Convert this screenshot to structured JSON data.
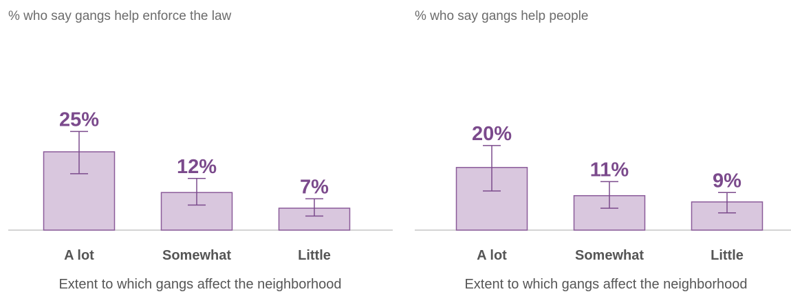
{
  "colors": {
    "bar_fill": "#d9c7de",
    "bar_stroke": "#8a5a99",
    "label": "#7b4a8c",
    "text": "#555555",
    "title": "#6b6b6b"
  },
  "chart_data": [
    {
      "type": "bar",
      "title": "% who say gangs help enforce the law",
      "xlabel": "Extent to which gangs affect the neighborhood",
      "ylabel": "",
      "categories": [
        "A lot",
        "Somewhat",
        "Little"
      ],
      "values": [
        25,
        12,
        7
      ],
      "value_labels": [
        "25%",
        "12%",
        "7%"
      ],
      "error_low": [
        18,
        8,
        4.5
      ],
      "error_high": [
        31.5,
        16.5,
        10
      ],
      "ylim": [
        0,
        40
      ],
      "grid": false
    },
    {
      "type": "bar",
      "title": "% who say gangs help people",
      "xlabel": "Extent to which gangs affect the neighborhood",
      "ylabel": "",
      "categories": [
        "A lot",
        "Somewhat",
        "Little"
      ],
      "values": [
        20,
        11,
        9
      ],
      "value_labels": [
        "20%",
        "11%",
        "9%"
      ],
      "error_low": [
        12.5,
        7,
        5.5
      ],
      "error_high": [
        27,
        15.5,
        12
      ],
      "ylim": [
        0,
        40
      ],
      "grid": false
    }
  ]
}
